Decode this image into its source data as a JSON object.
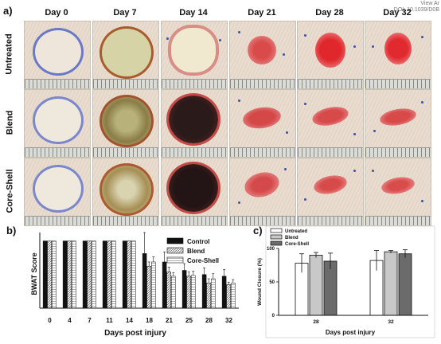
{
  "corner_text": [
    "View Ar",
    "DOI: 10.1039/D0B"
  ],
  "panels": {
    "a": "a)",
    "b": "b)",
    "c": "c)"
  },
  "days": [
    "Day 0",
    "Day 7",
    "Day 14",
    "Day 21",
    "Day 28",
    "Day 32"
  ],
  "rows": [
    "Untreated",
    "Blend",
    "Core-Shell"
  ],
  "chart_data": [
    {
      "type": "bar",
      "ylabel": "BWAT Score",
      "xlabel": "Days post injury",
      "categories": [
        "0",
        "4",
        "7",
        "11",
        "14",
        "18",
        "21",
        "25",
        "28",
        "32"
      ],
      "ylim": [
        0,
        9
      ],
      "series": [
        {
          "name": "Control",
          "color": "#111111",
          "values": [
            8,
            8,
            8,
            8,
            8,
            6.5,
            5.5,
            4.5,
            4,
            3.8
          ],
          "errors": [
            0,
            0,
            0,
            0,
            0,
            2.5,
            1.2,
            0.8,
            0.8,
            0.8
          ]
        },
        {
          "name": "Blend",
          "color": "#bbbbbb",
          "values": [
            8,
            8,
            8,
            8,
            8,
            5,
            4.3,
            3.8,
            3,
            2.8
          ],
          "errors": [
            0,
            0,
            0,
            0,
            0,
            0.5,
            0.6,
            0.5,
            0.5,
            0.3
          ]
        },
        {
          "name": "Core-Shell",
          "color": "#eeeeee",
          "values": [
            8,
            8,
            8,
            8,
            8,
            5.5,
            3.8,
            3.9,
            3.5,
            3
          ],
          "errors": [
            0,
            0,
            0,
            0,
            0,
            0.6,
            0.4,
            0.5,
            0.6,
            0.4
          ]
        }
      ]
    },
    {
      "type": "bar",
      "ylabel": "Wound Closure (%)",
      "xlabel": "Days post injury",
      "categories": [
        "28",
        "32"
      ],
      "ylim": [
        0,
        100
      ],
      "yticks": [
        0,
        50,
        100
      ],
      "series": [
        {
          "name": "Untreated",
          "color": "#ffffff",
          "values": [
            78,
            82
          ],
          "errors": [
            14,
            15
          ]
        },
        {
          "name": "Blend",
          "color": "#c8c8c8",
          "values": [
            90,
            95
          ],
          "errors": [
            4,
            2
          ]
        },
        {
          "name": "Core-Shell",
          "color": "#6b6b6b",
          "values": [
            81,
            92
          ],
          "errors": [
            12,
            6
          ]
        }
      ]
    }
  ]
}
